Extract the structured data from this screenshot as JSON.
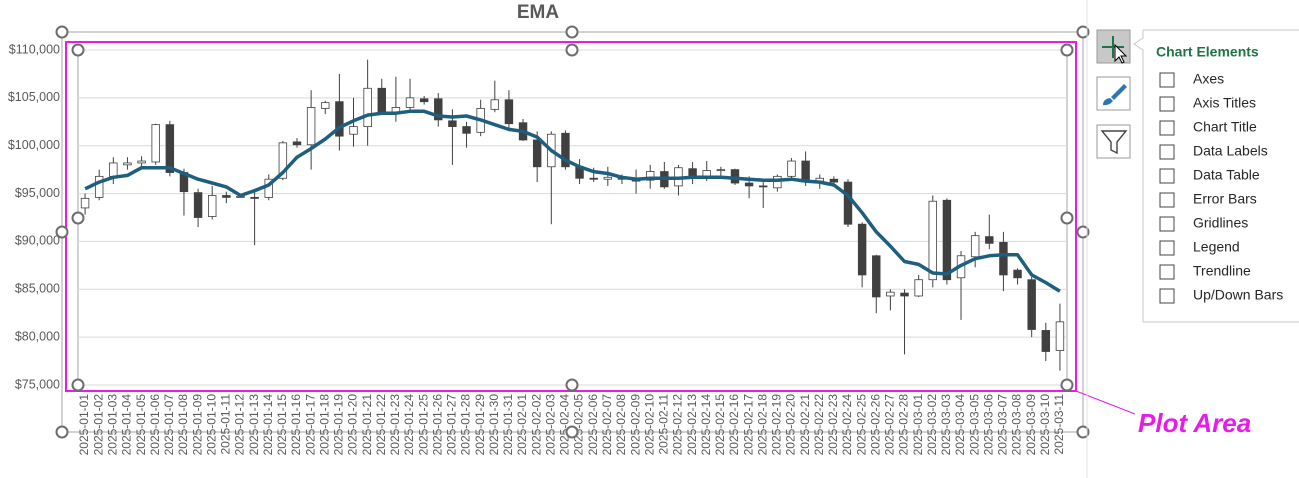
{
  "chart_data": {
    "type": "candlestick",
    "title": "EMA",
    "categories": [
      "2025-01-01",
      "2025-01-02",
      "2025-01-03",
      "2025-01-04",
      "2025-01-05",
      "2025-01-06",
      "2025-01-07",
      "2025-01-08",
      "2025-01-09",
      "2025-01-10",
      "2025-01-11",
      "2025-01-12",
      "2025-01-13",
      "2025-01-14",
      "2025-01-15",
      "2025-01-16",
      "2025-01-17",
      "2025-01-18",
      "2025-01-19",
      "2025-01-20",
      "2025-01-21",
      "2025-01-22",
      "2025-01-23",
      "2025-01-24",
      "2025-01-25",
      "2025-01-26",
      "2025-01-27",
      "2025-01-28",
      "2025-01-29",
      "2025-01-30",
      "2025-01-31",
      "2025-02-01",
      "2025-02-02",
      "2025-02-03",
      "2025-02-04",
      "2025-02-05",
      "2025-02-06",
      "2025-02-07",
      "2025-02-08",
      "2025-02-09",
      "2025-02-10",
      "2025-02-11",
      "2025-02-12",
      "2025-02-13",
      "2025-02-14",
      "2025-02-15",
      "2025-02-16",
      "2025-02-17",
      "2025-02-18",
      "2025-02-19",
      "2025-02-20",
      "2025-02-21",
      "2025-02-22",
      "2025-02-23",
      "2025-02-24",
      "2025-02-25",
      "2025-02-26",
      "2025-02-27",
      "2025-02-28",
      "2025-03-01",
      "2025-03-02",
      "2025-03-03",
      "2025-03-04",
      "2025-03-05",
      "2025-03-06",
      "2025-03-07",
      "2025-03-08",
      "2025-03-09",
      "2025-03-10",
      "2025-03-11"
    ],
    "open": [
      93500,
      94600,
      96800,
      98000,
      98200,
      98300,
      102200,
      97200,
      95100,
      92600,
      94800,
      94700,
      94600,
      94600,
      96600,
      100400,
      100100,
      103900,
      104600,
      101200,
      102000,
      106000,
      103500,
      104000,
      104900,
      104900,
      102600,
      102000,
      101400,
      103800,
      104800,
      102400,
      100600,
      97800,
      101300,
      97800,
      96600,
      96500,
      96600,
      96500,
      96400,
      97300,
      95800,
      97600,
      96700,
      97400,
      97500,
      96100,
      95800,
      95600,
      96800,
      98400,
      96300,
      96500,
      96200,
      91800,
      88500,
      84300,
      84600,
      84300,
      86000,
      94300,
      86200,
      88400,
      90500,
      89900,
      87000,
      86000,
      80700,
      78600
    ],
    "high": [
      95000,
      97500,
      98800,
      98800,
      98900,
      102300,
      102600,
      97600,
      95500,
      95800,
      95200,
      94800,
      95400,
      97000,
      100500,
      100800,
      105800,
      104700,
      107500,
      105000,
      109000,
      107000,
      107200,
      107000,
      105200,
      105500,
      103800,
      102500,
      104800,
      106800,
      105800,
      102800,
      101500,
      101500,
      101600,
      98600,
      97700,
      97800,
      97000,
      97500,
      98000,
      98300,
      98000,
      98300,
      98400,
      97800,
      97600,
      96800,
      96200,
      97000,
      98700,
      99400,
      97000,
      96800,
      96500,
      92000,
      88600,
      85000,
      85000,
      86500,
      94800,
      94500,
      89000,
      91000,
      92800,
      91000,
      87200,
      86300,
      81500,
      83500
    ],
    "low": [
      92800,
      94300,
      96000,
      97500,
      97600,
      98000,
      96800,
      92700,
      91500,
      92300,
      94000,
      94600,
      89600,
      94300,
      96400,
      99800,
      97500,
      103300,
      99500,
      99900,
      100000,
      103500,
      102500,
      103500,
      104300,
      102000,
      98000,
      99800,
      101000,
      103500,
      101500,
      100500,
      96200,
      91800,
      97500,
      96000,
      96200,
      95800,
      96000,
      95000,
      95500,
      95500,
      94800,
      96000,
      96300,
      96800,
      95900,
      94500,
      93500,
      95200,
      96500,
      95800,
      95500,
      95800,
      91500,
      85200,
      82500,
      82800,
      78200,
      84200,
      85200,
      85500,
      81800,
      87300,
      89200,
      84800,
      85500,
      80000,
      77500,
      76500
    ],
    "close": [
      94500,
      96800,
      98200,
      98200,
      98400,
      102200,
      97200,
      95200,
      92500,
      94800,
      94600,
      94700,
      94500,
      96500,
      100300,
      100100,
      104000,
      104500,
      101000,
      102000,
      106000,
      103500,
      104000,
      105000,
      104600,
      102700,
      102000,
      101300,
      103900,
      104800,
      102300,
      100600,
      97800,
      101200,
      97800,
      96600,
      96500,
      96700,
      96500,
      96300,
      97300,
      95700,
      97700,
      96700,
      97400,
      97500,
      96100,
      95800,
      95700,
      96800,
      98400,
      96200,
      96600,
      96200,
      91800,
      86500,
      84200,
      84700,
      84300,
      86000,
      94200,
      86000,
      88500,
      90600,
      89800,
      86500,
      86200,
      80800,
      78500,
      81600
    ],
    "up_color": "#ffffff",
    "down_color": "#404040",
    "lines": [
      {
        "color": "#1e5e7e",
        "values": [
          95500,
          96200,
          96700,
          96900,
          97700,
          97700,
          97700,
          97100,
          96500,
          96100,
          95700,
          94800,
          95300,
          95900,
          97200,
          98800,
          99700,
          100700,
          101900,
          102600,
          103200,
          103400,
          103400,
          103600,
          103600,
          103100,
          103000,
          103100,
          102700,
          102200,
          101700,
          101500,
          100900,
          99500,
          98500,
          97800,
          97300,
          97100,
          96700,
          96500,
          96600,
          96600,
          96600,
          96700,
          96700,
          96700,
          96600,
          96500,
          96400,
          96400,
          96500,
          96300,
          96200,
          95900,
          94800,
          93000,
          91000,
          89500,
          87900,
          87600,
          86700,
          86600,
          87500,
          88200,
          88500,
          88600,
          88600,
          86500,
          85700,
          84800
        ]
      }
    ],
    "ylim": [
      75000,
      110000
    ],
    "yticks": [
      {
        "value": 75000,
        "label": "$75,000"
      },
      {
        "value": 80000,
        "label": "$80,000"
      },
      {
        "value": 85000,
        "label": "$85,000"
      },
      {
        "value": 90000,
        "label": "$90,000"
      },
      {
        "value": 95000,
        "label": "$95,000"
      },
      {
        "value": 100000,
        "label": "$100,000"
      },
      {
        "value": 105000,
        "label": "$105,000"
      },
      {
        "value": 110000,
        "label": "$110,000"
      }
    ],
    "grid": true
  },
  "panel": {
    "title": "Chart Elements",
    "items": [
      "Axes",
      "Axis Titles",
      "Chart Title",
      "Data Labels",
      "Data Table",
      "Error Bars",
      "Gridlines",
      "Legend",
      "Trendline",
      "Up/Down Bars"
    ]
  },
  "annotation": "Plot Area"
}
